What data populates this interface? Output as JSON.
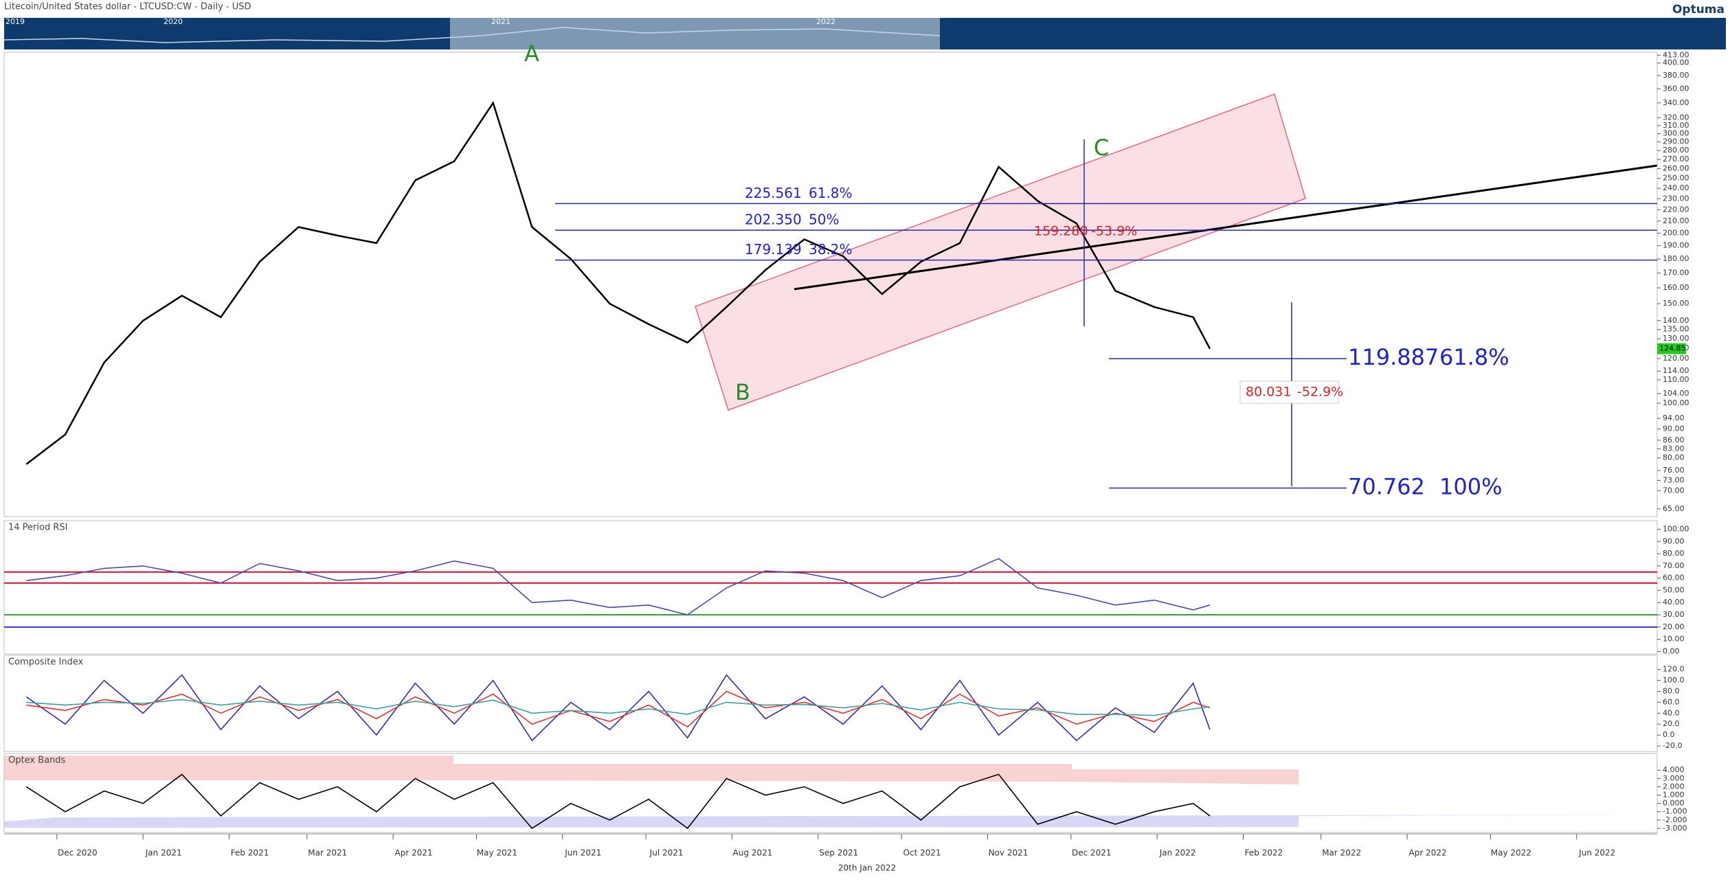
{
  "header": {
    "brand": "Optuma",
    "navigator_years": [
      "2019",
      "2020",
      "2021",
      "2022"
    ],
    "footer_date": "20th Jan 2022"
  },
  "chart_data": [
    {
      "type": "line",
      "title": "Litecoin/United States dollar - LTCUSD:CW - Daily - USD",
      "log_scale": true,
      "color": "#000000",
      "xlim": [
        "2020-11-12",
        "2022-06-30"
      ],
      "xticks": [
        {
          "value": "2020-12-01",
          "label": "Dec 2020"
        },
        {
          "value": "2021-01-01",
          "label": "Jan 2021"
        },
        {
          "value": "2021-02-01",
          "label": "Feb 2021"
        },
        {
          "value": "2021-03-01",
          "label": "Mar 2021"
        },
        {
          "value": "2021-04-01",
          "label": "Apr 2021"
        },
        {
          "value": "2021-05-01",
          "label": "May 2021"
        },
        {
          "value": "2021-06-01",
          "label": "Jun 2021"
        },
        {
          "value": "2021-07-01",
          "label": "Jul 2021"
        },
        {
          "value": "2021-08-01",
          "label": "Aug 2021"
        },
        {
          "value": "2021-09-01",
          "label": "Sep 2021"
        },
        {
          "value": "2021-10-01",
          "label": "Oct 2021"
        },
        {
          "value": "2021-11-01",
          "label": "Nov 2021"
        },
        {
          "value": "2021-12-01",
          "label": "Dec 2021"
        },
        {
          "value": "2022-01-01",
          "label": "Jan 2022"
        },
        {
          "value": "2022-02-01",
          "label": "Feb 2022"
        },
        {
          "value": "2022-03-01",
          "label": "Mar 2022"
        },
        {
          "value": "2022-04-01",
          "label": "Apr 2022"
        },
        {
          "value": "2022-05-01",
          "label": "May 2022"
        },
        {
          "value": "2022-06-01",
          "label": "Jun 2022"
        }
      ],
      "ylim": [
        63,
        418
      ],
      "yticks": [
        {
          "value": 65,
          "label": "65.00"
        },
        {
          "value": 70,
          "label": "70.00"
        },
        {
          "value": 73,
          "label": "73.00"
        },
        {
          "value": 76,
          "label": "76.00"
        },
        {
          "value": 80,
          "label": "80.00"
        },
        {
          "value": 83,
          "label": "83.00"
        },
        {
          "value": 86,
          "label": "86.00"
        },
        {
          "value": 90,
          "label": "90.00"
        },
        {
          "value": 94,
          "label": "94.00"
        },
        {
          "value": 100,
          "label": "100.00"
        },
        {
          "value": 104,
          "label": "104.00"
        },
        {
          "value": 110,
          "label": "110.00"
        },
        {
          "value": 114,
          "label": "114.00"
        },
        {
          "value": 120,
          "label": "120.00"
        },
        {
          "value": 125,
          "label": "125.00"
        },
        {
          "value": 130,
          "label": "130.00"
        },
        {
          "value": 135,
          "label": "135.00"
        },
        {
          "value": 140,
          "label": "140.00"
        },
        {
          "value": 150,
          "label": "150.00"
        },
        {
          "value": 160,
          "label": "160.00"
        },
        {
          "value": 170,
          "label": "170.00"
        },
        {
          "value": 180,
          "label": "180.00"
        },
        {
          "value": 190,
          "label": "190.00"
        },
        {
          "value": 200,
          "label": "200.00"
        },
        {
          "value": 210,
          "label": "210.00"
        },
        {
          "value": 220,
          "label": "220.00"
        },
        {
          "value": 230,
          "label": "230.00"
        },
        {
          "value": 240,
          "label": "240.00"
        },
        {
          "value": 250,
          "label": "250.00"
        },
        {
          "value": 260,
          "label": "260.00"
        },
        {
          "value": 270,
          "label": "270.00"
        },
        {
          "value": 280,
          "label": "280.00"
        },
        {
          "value": 290,
          "label": "290.00"
        },
        {
          "value": 300,
          "label": "300.00"
        },
        {
          "value": 310,
          "label": "310.00"
        },
        {
          "value": 320,
          "label": "320.00"
        },
        {
          "value": 340,
          "label": "340.00"
        },
        {
          "value": 360,
          "label": "360.00"
        },
        {
          "value": 380,
          "label": "380.00"
        },
        {
          "value": 400,
          "label": "400.00"
        },
        {
          "value": 413,
          "label": "413.00"
        }
      ],
      "x": [
        "2020-11-20",
        "2020-12-04",
        "2020-12-18",
        "2021-01-01",
        "2021-01-15",
        "2021-01-29",
        "2021-02-12",
        "2021-02-26",
        "2021-03-12",
        "2021-03-26",
        "2021-04-09",
        "2021-04-23",
        "2021-05-07",
        "2021-05-21",
        "2021-06-04",
        "2021-06-18",
        "2021-07-02",
        "2021-07-16",
        "2021-07-30",
        "2021-08-13",
        "2021-08-27",
        "2021-09-10",
        "2021-09-24",
        "2021-10-08",
        "2021-10-22",
        "2021-11-05",
        "2021-11-19",
        "2021-12-03",
        "2021-12-17",
        "2021-12-31",
        "2022-01-14",
        "2022-01-20"
      ],
      "values": [
        78,
        88,
        118,
        140,
        155,
        142,
        178,
        205,
        198,
        192,
        248,
        268,
        340,
        205,
        180,
        150,
        138,
        128,
        148,
        172,
        195,
        182,
        156,
        178,
        192,
        262,
        228,
        208,
        158,
        148,
        142,
        124.85
      ],
      "levels": [
        {
          "value": 225.561,
          "label": "225.561",
          "percent": "61.8%"
        },
        {
          "value": 202.35,
          "label": "202.350",
          "percent": "50%"
        },
        {
          "value": 179.139,
          "label": "179.139",
          "percent": "38.2%"
        },
        {
          "value": 119.887,
          "label": "119.887",
          "percent": "61.8%"
        },
        {
          "value": 70.762,
          "label": "70.762",
          "percent": "100%"
        }
      ],
      "measurements": [
        {
          "text": "159.280",
          "percent": "-53.9%"
        },
        {
          "text": "80.031",
          "percent": "-52.9%"
        }
      ],
      "wave_labels": [
        "A",
        "B",
        "C"
      ]
    },
    {
      "type": "line",
      "title": "14 Period RSI",
      "ylim": [
        -2,
        107
      ],
      "yticks": [
        {
          "value": 0,
          "label": "0.00"
        },
        {
          "value": 10,
          "label": "10.00"
        },
        {
          "value": 20,
          "label": "20.00"
        },
        {
          "value": 30,
          "label": "30.00"
        },
        {
          "value": 40,
          "label": "40.00"
        },
        {
          "value": 50,
          "label": "50.00"
        },
        {
          "value": 60,
          "label": "60.00"
        },
        {
          "value": 70,
          "label": "70.00"
        },
        {
          "value": 80,
          "label": "80.00"
        },
        {
          "value": 90,
          "label": "90.00"
        },
        {
          "value": 100,
          "label": "100.00"
        }
      ],
      "levels": [
        {
          "value": 65,
          "color": "#c8102e"
        },
        {
          "value": 56,
          "color": "#c8102e"
        },
        {
          "value": 30,
          "color": "#3a9a3a"
        },
        {
          "value": 20,
          "color": "#3535c8"
        }
      ],
      "x": [
        "2020-11-20",
        "2020-12-04",
        "2020-12-18",
        "2021-01-01",
        "2021-01-15",
        "2021-01-29",
        "2021-02-12",
        "2021-02-26",
        "2021-03-12",
        "2021-03-26",
        "2021-04-09",
        "2021-04-23",
        "2021-05-07",
        "2021-05-21",
        "2021-06-04",
        "2021-06-18",
        "2021-07-02",
        "2021-07-16",
        "2021-07-30",
        "2021-08-13",
        "2021-08-27",
        "2021-09-10",
        "2021-09-24",
        "2021-10-08",
        "2021-10-22",
        "2021-11-05",
        "2021-11-19",
        "2021-12-03",
        "2021-12-17",
        "2021-12-31",
        "2022-01-14",
        "2022-01-20"
      ],
      "series": [
        {
          "color": "#4a4aa8",
          "values": [
            58,
            62,
            68,
            70,
            64,
            56,
            72,
            66,
            58,
            60,
            66,
            74,
            68,
            40,
            42,
            36,
            38,
            30,
            52,
            66,
            64,
            58,
            44,
            58,
            62,
            76,
            52,
            46,
            38,
            42,
            34,
            38
          ]
        }
      ]
    },
    {
      "type": "line",
      "title": "Composite Index",
      "ylim": [
        -30,
        146
      ],
      "yticks": [
        {
          "value": -20,
          "label": "-20.0"
        },
        {
          "value": 0,
          "label": "0.0"
        },
        {
          "value": 20,
          "label": "20.0"
        },
        {
          "value": 40,
          "label": "40.0"
        },
        {
          "value": 60,
          "label": "60.0"
        },
        {
          "value": 80,
          "label": "80.0"
        },
        {
          "value": 100,
          "label": "100.0"
        },
        {
          "value": 120,
          "label": "120.0"
        }
      ],
      "x": [
        "2020-11-20",
        "2020-12-04",
        "2020-12-18",
        "2021-01-01",
        "2021-01-15",
        "2021-01-29",
        "2021-02-12",
        "2021-02-26",
        "2021-03-12",
        "2021-03-26",
        "2021-04-09",
        "2021-04-23",
        "2021-05-07",
        "2021-05-21",
        "2021-06-04",
        "2021-06-18",
        "2021-07-02",
        "2021-07-16",
        "2021-07-30",
        "2021-08-13",
        "2021-08-27",
        "2021-09-10",
        "2021-09-24",
        "2021-10-08",
        "2021-10-22",
        "2021-11-05",
        "2021-11-19",
        "2021-12-03",
        "2021-12-17",
        "2021-12-31",
        "2022-01-14",
        "2022-01-20"
      ],
      "series": [
        {
          "color": "#3030a0",
          "values": [
            70,
            20,
            100,
            40,
            110,
            10,
            90,
            30,
            80,
            0,
            95,
            20,
            100,
            -10,
            60,
            10,
            80,
            -5,
            110,
            30,
            70,
            20,
            90,
            10,
            100,
            0,
            60,
            -10,
            50,
            5,
            95,
            10
          ]
        },
        {
          "color": "#e03030",
          "values": [
            55,
            45,
            65,
            55,
            75,
            40,
            70,
            45,
            65,
            30,
            70,
            40,
            75,
            20,
            45,
            25,
            55,
            15,
            80,
            50,
            60,
            40,
            65,
            30,
            75,
            35,
            50,
            20,
            40,
            25,
            60,
            50
          ]
        },
        {
          "color": "#3aa0a0",
          "values": [
            60,
            55,
            60,
            58,
            65,
            55,
            62,
            55,
            60,
            48,
            62,
            52,
            64,
            40,
            45,
            40,
            48,
            38,
            60,
            55,
            56,
            50,
            58,
            46,
            60,
            48,
            46,
            38,
            38,
            36,
            48,
            52
          ]
        }
      ]
    },
    {
      "type": "line",
      "title": "Optex Bands",
      "ylim": [
        -3.5,
        6
      ],
      "yticks": [
        {
          "value": -3,
          "label": "-3.000"
        },
        {
          "value": -2,
          "label": "-2.000"
        },
        {
          "value": -1,
          "label": "-1.000"
        },
        {
          "value": 0,
          "label": "0.000"
        },
        {
          "value": 1,
          "label": "1.000"
        },
        {
          "value": 2,
          "label": "2.000"
        },
        {
          "value": 3,
          "label": "3.000"
        },
        {
          "value": 4,
          "label": "4.000"
        }
      ],
      "x": [
        "2020-11-20",
        "2020-12-04",
        "2020-12-18",
        "2021-01-01",
        "2021-01-15",
        "2021-01-29",
        "2021-02-12",
        "2021-02-26",
        "2021-03-12",
        "2021-03-26",
        "2021-04-09",
        "2021-04-23",
        "2021-05-07",
        "2021-05-21",
        "2021-06-04",
        "2021-06-18",
        "2021-07-02",
        "2021-07-16",
        "2021-07-30",
        "2021-08-13",
        "2021-08-27",
        "2021-09-10",
        "2021-09-24",
        "2021-10-08",
        "2021-10-22",
        "2021-11-05",
        "2021-11-19",
        "2021-12-03",
        "2021-12-17",
        "2021-12-31",
        "2022-01-14",
        "2022-01-20"
      ],
      "series": [
        {
          "color": "#000000",
          "values": [
            2,
            -1,
            1.5,
            0,
            3.5,
            -1.5,
            2.5,
            0.5,
            2,
            -1,
            3,
            0.5,
            2.5,
            -3,
            0,
            -2,
            0.5,
            -3,
            3,
            1,
            2,
            0,
            1.5,
            -2,
            2,
            3.5,
            -2.5,
            -1,
            -2.5,
            -1,
            0,
            -1.5
          ]
        }
      ]
    }
  ]
}
